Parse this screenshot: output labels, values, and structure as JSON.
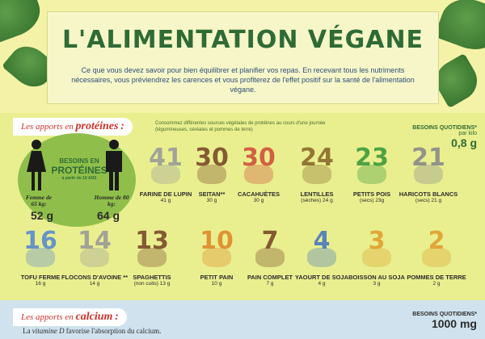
{
  "header": {
    "title": "L'ALIMENTATION VÉGANE",
    "intro": "Ce que vous devez savoir pour bien équilibrer et planifier vos repas. En recevant tous les nutriments nécessaires, vous préviendrez les carences et vous profiterez de l'effet positif sur la santé de l'alimentation végane."
  },
  "proteins": {
    "tab_prefix": "Les apports en",
    "tab_word": "protéines",
    "tab_suffix": ":",
    "note": "Consommez différentes sources végétales de protéines au cours d'une journée (légumineuses, céréales et pommes de terre)",
    "needs_label": "BESOINS QUOTIDIENS*",
    "needs_unit": "par kilo",
    "needs_value": "0,8 g",
    "badge": {
      "line1": "BESOINS EN",
      "line2": "PROTÉINES",
      "line3": "à partir de 19 ANS"
    },
    "woman": {
      "label": "Femme de 65 kg:",
      "value": "52 g"
    },
    "man": {
      "label": "Homme de 80 kg:",
      "value": "64 g"
    },
    "foods": [
      {
        "num": "41",
        "name": "FARINE DE LUPIN",
        "qty": "41 g",
        "color": "#9a9a9a"
      },
      {
        "num": "30",
        "name": "SEITAN**",
        "qty": "30 g",
        "color": "#7a4a2a"
      },
      {
        "num": "30",
        "name": "CACAHUÈTES",
        "qty": "30 g",
        "color": "#d0503a"
      },
      {
        "num": "24",
        "name": "LENTILLES",
        "qty": "(sèches) 24 g",
        "color": "#8a6a2a"
      },
      {
        "num": "23",
        "name": "PETITS POIS",
        "qty": "(secs) 23g",
        "color": "#3f9a3a"
      },
      {
        "num": "21",
        "name": "HARICOTS BLANCS",
        "qty": "(secs) 21 g",
        "color": "#8a8a8a"
      },
      {
        "num": "16",
        "name": "TOFU FERME",
        "qty": "16 g",
        "color": "#5a8ad0"
      },
      {
        "num": "14",
        "name": "FLOCONS D'AVOINE **",
        "qty": "14 g",
        "color": "#9a9a9a"
      },
      {
        "num": "13",
        "name": "SPAGHETTIS",
        "qty": "(non cuits) 13 g",
        "color": "#7a4a2a"
      },
      {
        "num": "10",
        "name": "PETIT PAIN",
        "qty": "10 g",
        "color": "#e08a2a"
      },
      {
        "num": "7",
        "name": "PAIN COMPLET",
        "qty": "7 g",
        "color": "#7a4a2a"
      },
      {
        "num": "4",
        "name": "YAOURT DE SOJA",
        "qty": "4 g",
        "color": "#4a7ac0"
      },
      {
        "num": "3",
        "name": "BOISSON AU SOJA",
        "qty": "3 g",
        "color": "#e0a030"
      },
      {
        "num": "2",
        "name": "POMMES DE TERRE",
        "qty": "2 g",
        "color": "#e0a030"
      }
    ]
  },
  "calcium": {
    "tab_prefix": "Les apports en",
    "tab_word": "calcium",
    "tab_suffix": ":",
    "needs_label": "BESOINS QUOTIDIENS*",
    "needs_value": "1000 mg",
    "vitd_prefix": "La",
    "vitd_word": "vitamine D",
    "vitd_suffix": "favorise l'absorption du calcium."
  }
}
